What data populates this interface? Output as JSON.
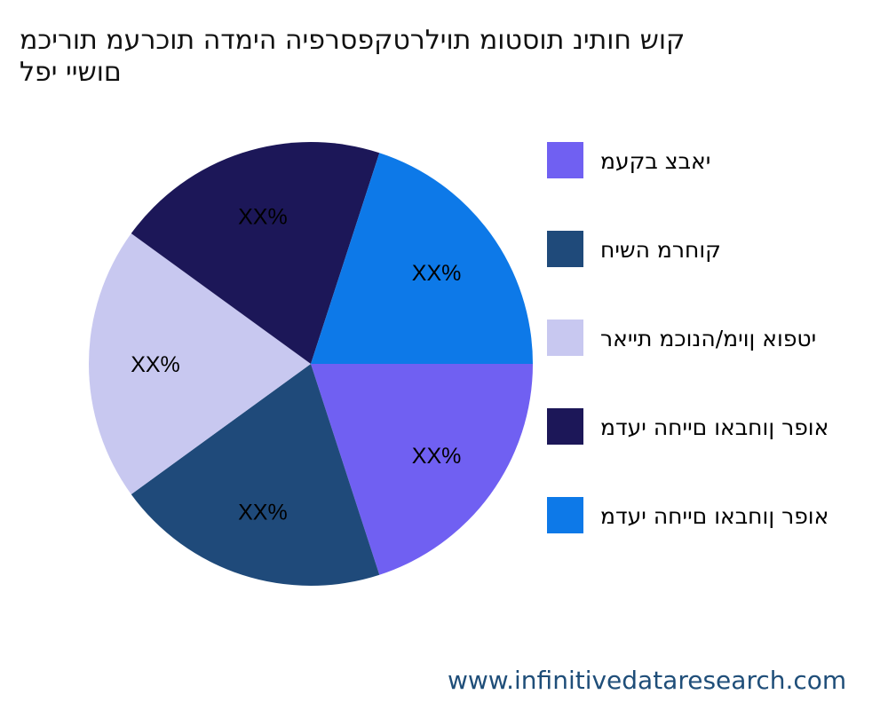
{
  "chart_data": {
    "type": "pie",
    "title_lines": [
      "קוש חותינ תוסטומ תוילרטקפסרפיה הימדה תוכרעמ תוריכמ",
      "םושיי יפל"
    ],
    "categories": [
      "יאבצ בקעמ",
      "קוחרמ השיח",
      "יטפוא ןוימ/הנוכמ תייאר",
      "אופר ןוחבאו םייחה יעדמ",
      "אופר ןוחבאו םייחה יעדמ"
    ],
    "values": [
      20,
      20,
      20,
      20,
      20
    ],
    "slice_labels": [
      "XX%",
      "XX%",
      "XX%",
      "XX%",
      "XX%"
    ],
    "colors": [
      "#7060f2",
      "#1f4a7a",
      "#c8c8f0",
      "#1c1758",
      "#0d79e8"
    ],
    "legend_position": "right"
  },
  "footer": {
    "website": "www.infinitivedataresearch.com"
  }
}
